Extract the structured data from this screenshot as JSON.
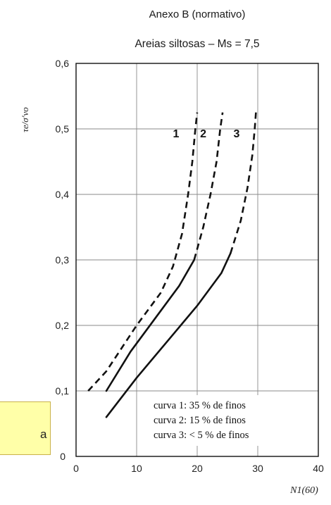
{
  "header": {
    "annex_title": "Anexo B (normativo)",
    "chart_title": "Areias siltosas – Ms = 7,5"
  },
  "side_note": {
    "visible_text": "a"
  },
  "chart_data": {
    "type": "line",
    "xlabel": "N1(60)",
    "ylabel": "τe/σ'vo",
    "xlim": [
      0,
      40
    ],
    "ylim": [
      0,
      0.6
    ],
    "xticks": [
      0,
      10,
      20,
      30,
      40
    ],
    "yticks": [
      0,
      0.1,
      0.2,
      0.3,
      0.4,
      0.5,
      0.6
    ],
    "xtick_labels": [
      "0",
      "10",
      "20",
      "30",
      "40"
    ],
    "ytick_labels": [
      "0",
      "0,1",
      "0,2",
      "0,3",
      "0,4",
      "0,5",
      "0,6"
    ],
    "grid": true,
    "curve_markers": [
      "1",
      "2",
      "3"
    ],
    "legend": [
      "curva 1: 35 % de finos",
      "curva 2: 15 % de finos",
      "curva 3: < 5 % de finos"
    ],
    "series": [
      {
        "name": "1",
        "color": "#111111",
        "solid": [],
        "dashed": [
          [
            2,
            0.1
          ],
          [
            5,
            0.13
          ],
          [
            10,
            0.2
          ],
          [
            14,
            0.25
          ],
          [
            16,
            0.29
          ],
          [
            17.5,
            0.34
          ],
          [
            18.5,
            0.4
          ],
          [
            19.2,
            0.45
          ],
          [
            19.7,
            0.5
          ],
          [
            20,
            0.525
          ]
        ]
      },
      {
        "name": "2",
        "color": "#111111",
        "solid": [
          [
            5,
            0.1
          ],
          [
            9,
            0.16
          ],
          [
            13,
            0.21
          ],
          [
            17,
            0.26
          ],
          [
            19.5,
            0.3
          ]
        ],
        "dashed": [
          [
            19.5,
            0.3
          ],
          [
            21,
            0.35
          ],
          [
            22.2,
            0.4
          ],
          [
            23.2,
            0.45
          ],
          [
            23.8,
            0.5
          ],
          [
            24.2,
            0.525
          ]
        ]
      },
      {
        "name": "3",
        "color": "#111111",
        "solid": [
          [
            5,
            0.06
          ],
          [
            10,
            0.12
          ],
          [
            15,
            0.175
          ],
          [
            20,
            0.23
          ],
          [
            24,
            0.28
          ],
          [
            25.5,
            0.31
          ]
        ],
        "dashed": [
          [
            25.5,
            0.31
          ],
          [
            27.2,
            0.36
          ],
          [
            28.3,
            0.41
          ],
          [
            29.1,
            0.46
          ],
          [
            29.5,
            0.5
          ],
          [
            29.7,
            0.525
          ]
        ]
      }
    ]
  }
}
